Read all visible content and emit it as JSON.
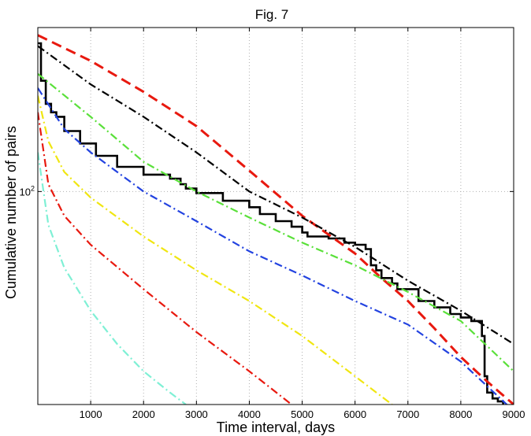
{
  "chart_data": {
    "type": "line",
    "title": "Fig. 7",
    "xlabel": "Time interval, days",
    "ylabel": "Cumulative number of pairs",
    "xlim": [
      0,
      9000
    ],
    "ylim": [
      24,
      300
    ],
    "yscale": "log",
    "grid": true,
    "x_ticks": [
      1000,
      2000,
      3000,
      4000,
      5000,
      6000,
      7000,
      8000,
      9000
    ],
    "y_ticks": [
      {
        "value": 100,
        "base": "10",
        "exp": "2"
      }
    ],
    "series": [
      {
        "style": "solid-step",
        "color": "#000000",
        "x": [
          0,
          60,
          150,
          250,
          350,
          500,
          800,
          1100,
          1500,
          2000,
          2500,
          2700,
          2800,
          3000,
          3500,
          4000,
          4200,
          4500,
          4800,
          5000,
          5100,
          5500,
          5800,
          6000,
          6200,
          6300,
          6400,
          6500,
          6700,
          6800,
          7000,
          7200,
          7500,
          7800,
          8000,
          8200,
          8400,
          8450,
          8500,
          8600,
          8700,
          8800
        ],
        "y": [
          270,
          210,
          180,
          170,
          165,
          150,
          138,
          127,
          118,
          112,
          109,
          105,
          102,
          99,
          94,
          90,
          86,
          82,
          79,
          76,
          74,
          73,
          71,
          70,
          68,
          61,
          59,
          56,
          54,
          52,
          52,
          48,
          46,
          44,
          43,
          42,
          38,
          29,
          26,
          25,
          24.5,
          24
        ]
      },
      {
        "style": "dashed",
        "color": "#e8190f",
        "x": [
          0,
          1000,
          2000,
          3000,
          4000,
          5000,
          6000,
          6500,
          7000,
          7500,
          8000,
          8500,
          9000
        ],
        "y": [
          285,
          240,
          195,
          155,
          115,
          85,
          66,
          56,
          48,
          40,
          33,
          28,
          24
        ]
      },
      {
        "style": "dash-dot",
        "color": "#000000",
        "x": [
          0,
          1000,
          2000,
          3000,
          4000,
          5000,
          6000,
          7000,
          8000,
          9000
        ],
        "y": [
          265,
          205,
          165,
          130,
          100,
          84,
          69,
          55,
          45,
          36
        ]
      },
      {
        "style": "dash-dot",
        "color": "#5ae03a",
        "x": [
          0,
          1000,
          2000,
          3000,
          4000,
          5000,
          6000,
          7000,
          8000,
          9000
        ],
        "y": [
          220,
          165,
          122,
          100,
          84,
          71,
          61,
          51,
          42,
          30
        ]
      },
      {
        "style": "dash-dot",
        "color": "#2343e0",
        "x": [
          0,
          500,
          1000,
          2000,
          3000,
          4000,
          5000,
          6000,
          7000,
          8000,
          9000
        ],
        "y": [
          200,
          152,
          130,
          100,
          82,
          67,
          57,
          48,
          41,
          32,
          23
        ]
      },
      {
        "style": "dash-dot",
        "color": "#f0e611",
        "x": [
          0,
          200,
          500,
          1000,
          2000,
          3000,
          4000,
          5000,
          6000,
          6700
        ],
        "y": [
          190,
          140,
          114,
          96,
          74,
          59,
          48,
          38,
          29,
          24
        ]
      },
      {
        "style": "dash-dot",
        "color": "#e8190f",
        "x": [
          0,
          200,
          500,
          1000,
          2000,
          3000,
          4000,
          4800
        ],
        "y": [
          170,
          105,
          85,
          70,
          52,
          39,
          30,
          24
        ]
      },
      {
        "style": "dash-dot",
        "color": "#7ff0d5",
        "x": [
          0,
          200,
          500,
          1000,
          1500,
          2000,
          2500,
          2800
        ],
        "y": [
          130,
          80,
          60,
          45,
          36,
          30,
          26,
          24
        ]
      }
    ]
  }
}
